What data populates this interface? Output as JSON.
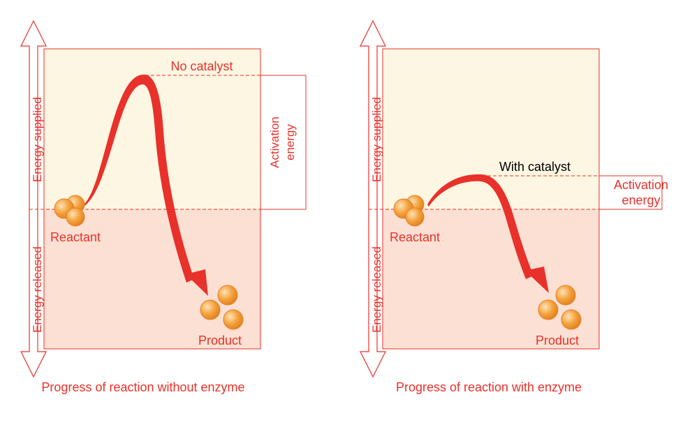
{
  "colors": {
    "accent": "#e8312a",
    "supplied_zone": "#fdf6e2",
    "released_zone": "#fbe0d3",
    "molecule_fill": "#f5a23c",
    "molecule_highlight": "#fde3b8",
    "dark_text": "#000000"
  },
  "left_panel": {
    "axis_supplied": "Energy supplied",
    "axis_released": "Energy released",
    "peak_label": "No catalyst",
    "activation_label_line1": "Activation",
    "activation_label_line2": "energy",
    "reactant_label": "Reactant",
    "product_label": "Product",
    "caption": "Progress of reaction without enzyme"
  },
  "right_panel": {
    "axis_supplied": "Energy supplied",
    "axis_released": "Energy released",
    "peak_label": "With catalyst",
    "activation_label_line1": "Activation",
    "activation_label_line2": "energy",
    "reactant_label": "Reactant",
    "product_label": "Product",
    "caption": "Progress of reaction with enzyme"
  }
}
